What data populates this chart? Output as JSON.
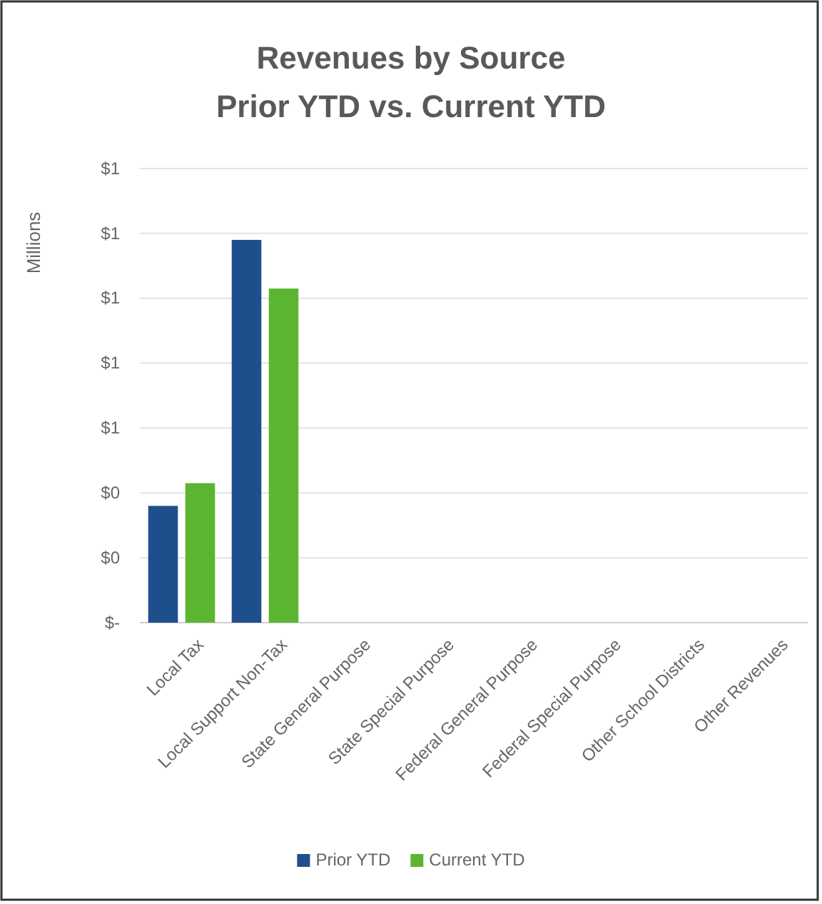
{
  "chart_data": {
    "type": "bar",
    "title": "Revenues by Source",
    "subtitle": "Prior YTD vs. Current YTD",
    "ylabel": "Millions",
    "categories": [
      "Local Tax",
      "Local Support Non-Tax",
      "State General Purpose",
      "State Special Purpose",
      "Federal General Purpose",
      "Federal Special Purpose",
      "Other School Districts",
      "Other Revenues"
    ],
    "series": [
      {
        "name": "Prior YTD",
        "color": "#1f4e8c",
        "values": [
          0.36,
          1.18,
          0,
          0,
          0,
          0,
          0,
          0
        ]
      },
      {
        "name": "Current YTD",
        "color": "#5cb531",
        "values": [
          0.43,
          1.03,
          0,
          0,
          0,
          0,
          0,
          0
        ]
      }
    ],
    "ylim": [
      0,
      1.4
    ],
    "yticks": [
      {
        "value": 0,
        "label": "$-"
      },
      {
        "value": 0.2,
        "label": "$0"
      },
      {
        "value": 0.4,
        "label": "$0"
      },
      {
        "value": 0.6,
        "label": "$1"
      },
      {
        "value": 0.8,
        "label": "$1"
      },
      {
        "value": 1.0,
        "label": "$1"
      },
      {
        "value": 1.2,
        "label": "$1"
      },
      {
        "value": 1.4,
        "label": "$1"
      }
    ],
    "grid": "y",
    "legend": "bottom"
  }
}
